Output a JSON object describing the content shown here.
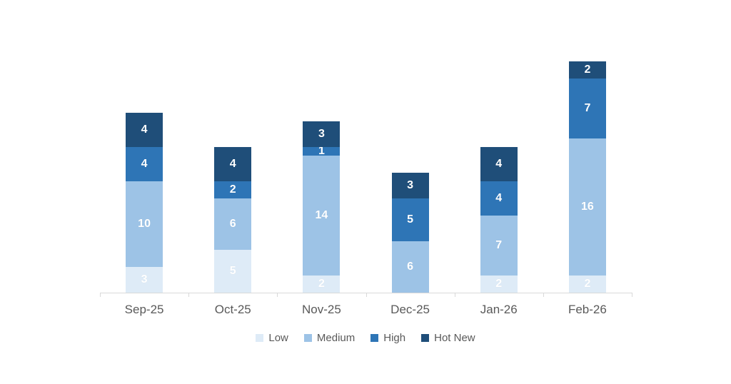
{
  "chart_data": {
    "type": "bar",
    "stacked": true,
    "title": "",
    "xlabel": "",
    "ylabel": "",
    "categories": [
      "Sep-25",
      "Oct-25",
      "Nov-25",
      "Dec-25",
      "Jan-26",
      "Feb-26"
    ],
    "series": [
      {
        "name": "Low",
        "color": "#deebf7",
        "values": [
          3,
          5,
          2,
          0,
          2,
          2
        ]
      },
      {
        "name": "Medium",
        "color": "#9dc3e6",
        "values": [
          10,
          6,
          14,
          6,
          7,
          16
        ]
      },
      {
        "name": "High",
        "color": "#2e75b6",
        "values": [
          4,
          2,
          1,
          5,
          4,
          7
        ]
      },
      {
        "name": "Hot New",
        "color": "#1f4e79",
        "values": [
          4,
          4,
          3,
          3,
          4,
          2
        ]
      }
    ],
    "totals": [
      21,
      17,
      20,
      14,
      17,
      27
    ],
    "ylim": [
      0,
      30
    ],
    "grid": false,
    "y_axis_visible": false,
    "data_labels": true,
    "data_label_color": "#ffffff",
    "legend_position": "bottom",
    "legend_entries": [
      "Low",
      "Medium",
      "High",
      "Hot New"
    ],
    "axis_line_color": "#d9d9d9",
    "tick_color": "#d9d9d9",
    "text_color": "#595959",
    "background_color": "#ffffff"
  }
}
